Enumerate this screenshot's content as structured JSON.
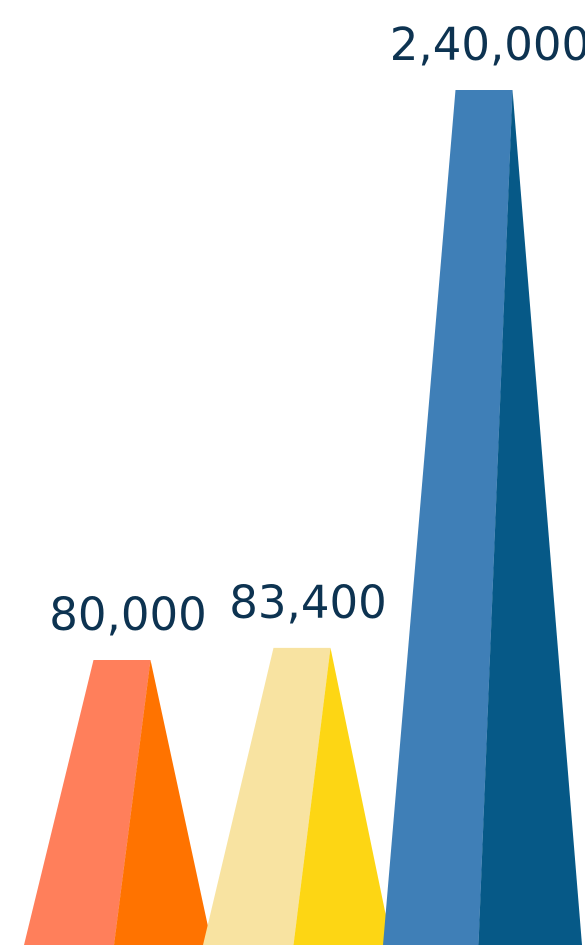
{
  "chart_data": {
    "type": "bar",
    "categories": [
      "",
      "",
      ""
    ],
    "values": [
      80000,
      83400,
      240000
    ],
    "data_labels": [
      "80,000",
      "83,400",
      "2,40,000"
    ],
    "ylim": [
      0,
      240000
    ],
    "grid": false,
    "bar_colors": [
      {
        "light": "#FF7F5B",
        "dark": "#FF7300"
      },
      {
        "light": "#F8E3A1",
        "dark": "#FDD614"
      },
      {
        "light": "#3F7FB7",
        "dark": "#065987"
      }
    ],
    "label_color": "#0D3351"
  }
}
